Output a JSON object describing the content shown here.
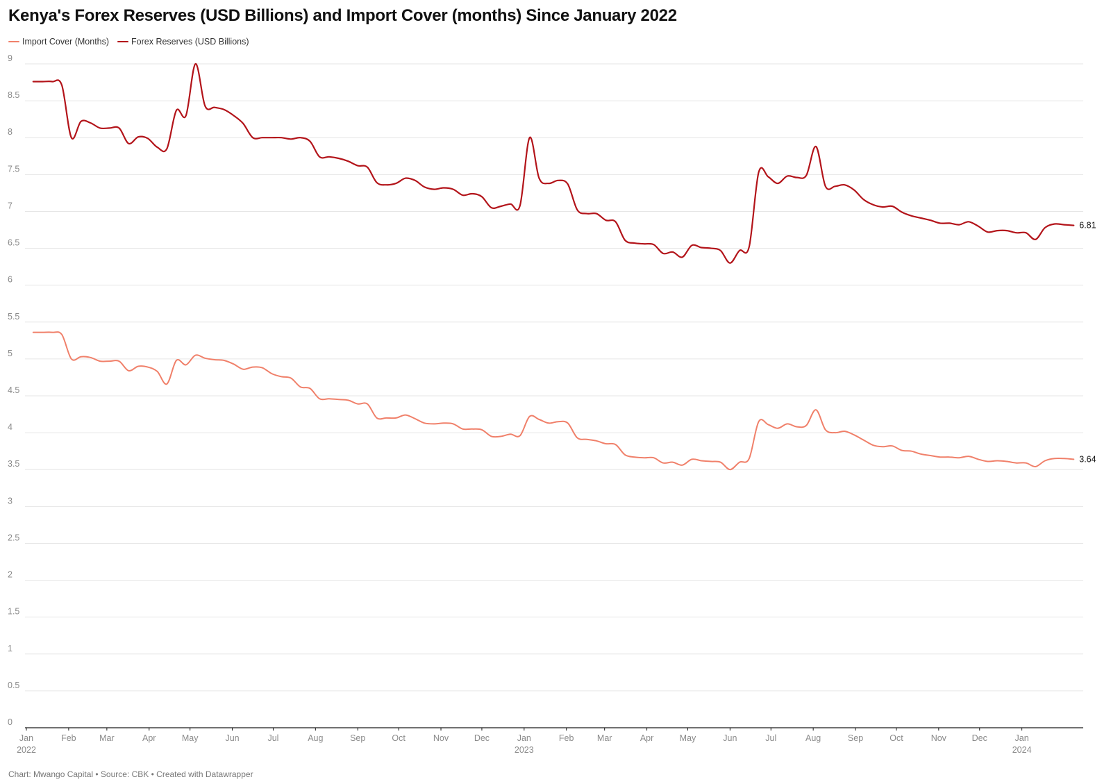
{
  "chart_data": {
    "type": "line",
    "title": "Kenya's Forex Reserves (USD Billions) and Import Cover (months) Since January 2022",
    "xlabel": "",
    "ylabel": "",
    "xlim": [
      "2022-01-01",
      "2024-02-15"
    ],
    "ylim": [
      0,
      9
    ],
    "grid": true,
    "legend_position": "top-left",
    "y_ticks": [
      "0",
      "0.5",
      "1",
      "1.5",
      "2",
      "2.5",
      "3",
      "3.5",
      "4",
      "4.5",
      "5",
      "5.5",
      "6",
      "6.5",
      "7",
      "7.5",
      "8",
      "8.5",
      "9"
    ],
    "x_ticks": [
      {
        "date": "2022-01-01",
        "label": "Jan",
        "year": "2022"
      },
      {
        "date": "2022-02-01",
        "label": "Feb",
        "year": ""
      },
      {
        "date": "2022-03-01",
        "label": "Mar",
        "year": ""
      },
      {
        "date": "2022-04-01",
        "label": "Apr",
        "year": ""
      },
      {
        "date": "2022-05-01",
        "label": "May",
        "year": ""
      },
      {
        "date": "2022-06-01",
        "label": "Jun",
        "year": ""
      },
      {
        "date": "2022-07-01",
        "label": "Jul",
        "year": ""
      },
      {
        "date": "2022-08-01",
        "label": "Aug",
        "year": ""
      },
      {
        "date": "2022-09-01",
        "label": "Sep",
        "year": ""
      },
      {
        "date": "2022-10-01",
        "label": "Oct",
        "year": ""
      },
      {
        "date": "2022-11-01",
        "label": "Nov",
        "year": ""
      },
      {
        "date": "2022-12-01",
        "label": "Dec",
        "year": ""
      },
      {
        "date": "2023-01-01",
        "label": "Jan",
        "year": "2023"
      },
      {
        "date": "2023-02-01",
        "label": "Feb",
        "year": ""
      },
      {
        "date": "2023-03-01",
        "label": "Mar",
        "year": ""
      },
      {
        "date": "2023-04-01",
        "label": "Apr",
        "year": ""
      },
      {
        "date": "2023-05-01",
        "label": "May",
        "year": ""
      },
      {
        "date": "2023-06-01",
        "label": "Jun",
        "year": ""
      },
      {
        "date": "2023-07-01",
        "label": "Jul",
        "year": ""
      },
      {
        "date": "2023-08-01",
        "label": "Aug",
        "year": ""
      },
      {
        "date": "2023-09-01",
        "label": "Sep",
        "year": ""
      },
      {
        "date": "2023-10-01",
        "label": "Oct",
        "year": ""
      },
      {
        "date": "2023-11-01",
        "label": "Nov",
        "year": ""
      },
      {
        "date": "2023-12-01",
        "label": "Dec",
        "year": ""
      },
      {
        "date": "2024-01-01",
        "label": "Jan",
        "year": "2024"
      }
    ],
    "series": [
      {
        "name": "Import Cover (Months)",
        "color": "#f0806a",
        "end_label": "3.64",
        "points": [
          [
            "2022-01-06",
            5.36
          ],
          [
            "2022-01-13",
            5.36
          ],
          [
            "2022-01-20",
            5.36
          ],
          [
            "2022-01-27",
            5.33
          ],
          [
            "2022-02-03",
            5.0
          ],
          [
            "2022-02-10",
            5.03
          ],
          [
            "2022-02-17",
            5.02
          ],
          [
            "2022-02-24",
            4.97
          ],
          [
            "2022-03-03",
            4.97
          ],
          [
            "2022-03-10",
            4.97
          ],
          [
            "2022-03-17",
            4.84
          ],
          [
            "2022-03-24",
            4.9
          ],
          [
            "2022-03-31",
            4.89
          ],
          [
            "2022-04-07",
            4.83
          ],
          [
            "2022-04-14",
            4.66
          ],
          [
            "2022-04-21",
            4.98
          ],
          [
            "2022-04-28",
            4.92
          ],
          [
            "2022-05-05",
            5.05
          ],
          [
            "2022-05-12",
            5.01
          ],
          [
            "2022-05-19",
            4.99
          ],
          [
            "2022-05-26",
            4.98
          ],
          [
            "2022-06-02",
            4.93
          ],
          [
            "2022-06-09",
            4.86
          ],
          [
            "2022-06-16",
            4.89
          ],
          [
            "2022-06-23",
            4.88
          ],
          [
            "2022-06-30",
            4.8
          ],
          [
            "2022-07-07",
            4.76
          ],
          [
            "2022-07-14",
            4.74
          ],
          [
            "2022-07-21",
            4.62
          ],
          [
            "2022-07-28",
            4.6
          ],
          [
            "2022-08-04",
            4.46
          ],
          [
            "2022-08-11",
            4.46
          ],
          [
            "2022-08-18",
            4.45
          ],
          [
            "2022-08-25",
            4.44
          ],
          [
            "2022-09-01",
            4.39
          ],
          [
            "2022-09-08",
            4.39
          ],
          [
            "2022-09-15",
            4.2
          ],
          [
            "2022-09-22",
            4.2
          ],
          [
            "2022-09-29",
            4.2
          ],
          [
            "2022-10-06",
            4.24
          ],
          [
            "2022-10-13",
            4.19
          ],
          [
            "2022-10-20",
            4.13
          ],
          [
            "2022-10-27",
            4.12
          ],
          [
            "2022-11-03",
            4.13
          ],
          [
            "2022-11-10",
            4.12
          ],
          [
            "2022-11-17",
            4.05
          ],
          [
            "2022-11-24",
            4.05
          ],
          [
            "2022-12-01",
            4.04
          ],
          [
            "2022-12-08",
            3.95
          ],
          [
            "2022-12-15",
            3.95
          ],
          [
            "2022-12-22",
            3.98
          ],
          [
            "2022-12-29",
            3.96
          ],
          [
            "2023-01-05",
            4.22
          ],
          [
            "2023-01-12",
            4.18
          ],
          [
            "2023-01-19",
            4.13
          ],
          [
            "2023-01-26",
            4.15
          ],
          [
            "2023-02-02",
            4.13
          ],
          [
            "2023-02-09",
            3.93
          ],
          [
            "2023-02-16",
            3.91
          ],
          [
            "2023-02-23",
            3.89
          ],
          [
            "2023-03-02",
            3.85
          ],
          [
            "2023-03-09",
            3.84
          ],
          [
            "2023-03-16",
            3.7
          ],
          [
            "2023-03-23",
            3.67
          ],
          [
            "2023-03-30",
            3.66
          ],
          [
            "2023-04-06",
            3.66
          ],
          [
            "2023-04-13",
            3.59
          ],
          [
            "2023-04-20",
            3.6
          ],
          [
            "2023-04-27",
            3.56
          ],
          [
            "2023-05-04",
            3.64
          ],
          [
            "2023-05-11",
            3.62
          ],
          [
            "2023-05-18",
            3.61
          ],
          [
            "2023-05-25",
            3.6
          ],
          [
            "2023-06-01",
            3.5
          ],
          [
            "2023-06-08",
            3.6
          ],
          [
            "2023-06-15",
            3.65
          ],
          [
            "2023-06-22",
            4.15
          ],
          [
            "2023-06-29",
            4.11
          ],
          [
            "2023-07-06",
            4.06
          ],
          [
            "2023-07-13",
            4.12
          ],
          [
            "2023-07-20",
            4.08
          ],
          [
            "2023-07-27",
            4.1
          ],
          [
            "2023-08-03",
            4.31
          ],
          [
            "2023-08-10",
            4.04
          ],
          [
            "2023-08-17",
            4.0
          ],
          [
            "2023-08-24",
            4.02
          ],
          [
            "2023-08-31",
            3.97
          ],
          [
            "2023-09-07",
            3.9
          ],
          [
            "2023-09-14",
            3.83
          ],
          [
            "2023-09-21",
            3.81
          ],
          [
            "2023-09-28",
            3.82
          ],
          [
            "2023-10-05",
            3.76
          ],
          [
            "2023-10-12",
            3.75
          ],
          [
            "2023-10-19",
            3.71
          ],
          [
            "2023-10-26",
            3.69
          ],
          [
            "2023-11-02",
            3.67
          ],
          [
            "2023-11-09",
            3.67
          ],
          [
            "2023-11-16",
            3.66
          ],
          [
            "2023-11-23",
            3.68
          ],
          [
            "2023-11-30",
            3.64
          ],
          [
            "2023-12-07",
            3.61
          ],
          [
            "2023-12-14",
            3.62
          ],
          [
            "2023-12-21",
            3.61
          ],
          [
            "2023-12-28",
            3.59
          ],
          [
            "2024-01-04",
            3.59
          ],
          [
            "2024-01-11",
            3.54
          ],
          [
            "2024-01-18",
            3.62
          ],
          [
            "2024-01-25",
            3.65
          ],
          [
            "2024-02-01",
            3.65
          ],
          [
            "2024-02-08",
            3.64
          ]
        ]
      },
      {
        "name": "Forex Reserves (USD Billions)",
        "color": "#b3141a",
        "end_label": "6.81",
        "points": [
          [
            "2022-01-06",
            8.76
          ],
          [
            "2022-01-13",
            8.76
          ],
          [
            "2022-01-20",
            8.76
          ],
          [
            "2022-01-27",
            8.71
          ],
          [
            "2022-02-03",
            8.0
          ],
          [
            "2022-02-10",
            8.22
          ],
          [
            "2022-02-17",
            8.2
          ],
          [
            "2022-02-24",
            8.13
          ],
          [
            "2022-03-03",
            8.13
          ],
          [
            "2022-03-10",
            8.13
          ],
          [
            "2022-03-17",
            7.92
          ],
          [
            "2022-03-24",
            8.01
          ],
          [
            "2022-03-31",
            7.99
          ],
          [
            "2022-04-07",
            7.87
          ],
          [
            "2022-04-14",
            7.85
          ],
          [
            "2022-04-21",
            8.37
          ],
          [
            "2022-04-28",
            8.3
          ],
          [
            "2022-05-05",
            9.0
          ],
          [
            "2022-05-12",
            8.43
          ],
          [
            "2022-05-19",
            8.41
          ],
          [
            "2022-05-26",
            8.38
          ],
          [
            "2022-06-02",
            8.3
          ],
          [
            "2022-06-09",
            8.19
          ],
          [
            "2022-06-16",
            8.0
          ],
          [
            "2022-06-23",
            8.0
          ],
          [
            "2022-06-30",
            8.0
          ],
          [
            "2022-07-07",
            8.0
          ],
          [
            "2022-07-14",
            7.98
          ],
          [
            "2022-07-21",
            8.0
          ],
          [
            "2022-07-28",
            7.95
          ],
          [
            "2022-08-04",
            7.74
          ],
          [
            "2022-08-11",
            7.74
          ],
          [
            "2022-08-18",
            7.72
          ],
          [
            "2022-08-25",
            7.68
          ],
          [
            "2022-09-01",
            7.62
          ],
          [
            "2022-09-08",
            7.6
          ],
          [
            "2022-09-15",
            7.39
          ],
          [
            "2022-09-22",
            7.36
          ],
          [
            "2022-09-29",
            7.38
          ],
          [
            "2022-10-06",
            7.45
          ],
          [
            "2022-10-13",
            7.42
          ],
          [
            "2022-10-20",
            7.33
          ],
          [
            "2022-10-27",
            7.3
          ],
          [
            "2022-11-03",
            7.32
          ],
          [
            "2022-11-10",
            7.3
          ],
          [
            "2022-11-17",
            7.22
          ],
          [
            "2022-11-24",
            7.24
          ],
          [
            "2022-12-01",
            7.2
          ],
          [
            "2022-12-08",
            7.05
          ],
          [
            "2022-12-15",
            7.07
          ],
          [
            "2022-12-22",
            7.1
          ],
          [
            "2022-12-29",
            7.08
          ],
          [
            "2023-01-05",
            8.0
          ],
          [
            "2023-01-12",
            7.45
          ],
          [
            "2023-01-19",
            7.38
          ],
          [
            "2023-01-26",
            7.42
          ],
          [
            "2023-02-02",
            7.37
          ],
          [
            "2023-02-09",
            7.02
          ],
          [
            "2023-02-16",
            6.97
          ],
          [
            "2023-02-23",
            6.97
          ],
          [
            "2023-03-02",
            6.88
          ],
          [
            "2023-03-09",
            6.86
          ],
          [
            "2023-03-16",
            6.61
          ],
          [
            "2023-03-23",
            6.57
          ],
          [
            "2023-03-30",
            6.56
          ],
          [
            "2023-04-06",
            6.55
          ],
          [
            "2023-04-13",
            6.43
          ],
          [
            "2023-04-20",
            6.45
          ],
          [
            "2023-04-27",
            6.38
          ],
          [
            "2023-05-04",
            6.54
          ],
          [
            "2023-05-11",
            6.51
          ],
          [
            "2023-05-18",
            6.5
          ],
          [
            "2023-05-25",
            6.47
          ],
          [
            "2023-06-01",
            6.3
          ],
          [
            "2023-06-08",
            6.47
          ],
          [
            "2023-06-15",
            6.52
          ],
          [
            "2023-06-22",
            7.53
          ],
          [
            "2023-06-29",
            7.47
          ],
          [
            "2023-07-06",
            7.38
          ],
          [
            "2023-07-13",
            7.48
          ],
          [
            "2023-07-20",
            7.46
          ],
          [
            "2023-07-27",
            7.49
          ],
          [
            "2023-08-03",
            7.88
          ],
          [
            "2023-08-10",
            7.34
          ],
          [
            "2023-08-17",
            7.34
          ],
          [
            "2023-08-24",
            7.36
          ],
          [
            "2023-08-31",
            7.29
          ],
          [
            "2023-09-07",
            7.16
          ],
          [
            "2023-09-14",
            7.09
          ],
          [
            "2023-09-21",
            7.06
          ],
          [
            "2023-09-28",
            7.07
          ],
          [
            "2023-10-05",
            6.99
          ],
          [
            "2023-10-12",
            6.94
          ],
          [
            "2023-10-19",
            6.91
          ],
          [
            "2023-10-26",
            6.88
          ],
          [
            "2023-11-02",
            6.84
          ],
          [
            "2023-11-09",
            6.84
          ],
          [
            "2023-11-16",
            6.82
          ],
          [
            "2023-11-23",
            6.86
          ],
          [
            "2023-11-30",
            6.8
          ],
          [
            "2023-12-07",
            6.72
          ],
          [
            "2023-12-14",
            6.74
          ],
          [
            "2023-12-21",
            6.74
          ],
          [
            "2023-12-28",
            6.71
          ],
          [
            "2024-01-04",
            6.71
          ],
          [
            "2024-01-11",
            6.62
          ],
          [
            "2024-01-18",
            6.78
          ],
          [
            "2024-01-25",
            6.83
          ],
          [
            "2024-02-01",
            6.82
          ],
          [
            "2024-02-08",
            6.81
          ]
        ]
      }
    ]
  },
  "footer": "Chart: Mwango Capital • Source: CBK • Created with Datawrapper"
}
